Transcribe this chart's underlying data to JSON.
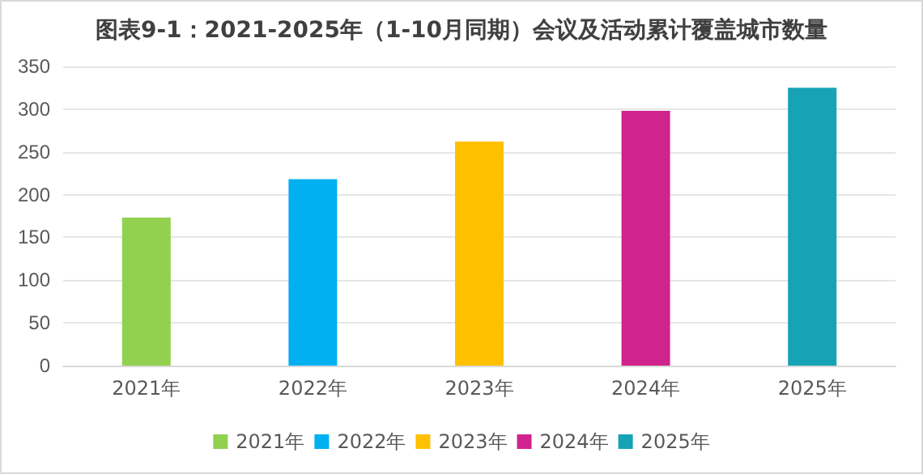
{
  "chart_data": {
    "type": "bar",
    "title": "图表9-1：2021-2025年（1-10月同期）会议及活动累计覆盖城市数量",
    "categories": [
      "2021年",
      "2022年",
      "2023年",
      "2024年",
      "2025年"
    ],
    "series": [
      {
        "name": "2021年",
        "color": "#92d050",
        "values": [
          173,
          null,
          null,
          null,
          null
        ]
      },
      {
        "name": "2022年",
        "color": "#00b0f0",
        "values": [
          null,
          218,
          null,
          null,
          null
        ]
      },
      {
        "name": "2023年",
        "color": "#ffc000",
        "values": [
          null,
          null,
          262,
          null,
          null
        ]
      },
      {
        "name": "2024年",
        "color": "#d0238d",
        "values": [
          null,
          null,
          null,
          298,
          null
        ]
      },
      {
        "name": "2025年",
        "color": "#16a3b5",
        "values": [
          null,
          null,
          null,
          null,
          325
        ]
      }
    ],
    "ylim": [
      0,
      350
    ],
    "yticks": [
      0,
      50,
      100,
      150,
      200,
      250,
      300,
      350
    ],
    "grid": "y",
    "legend": "bottom"
  }
}
